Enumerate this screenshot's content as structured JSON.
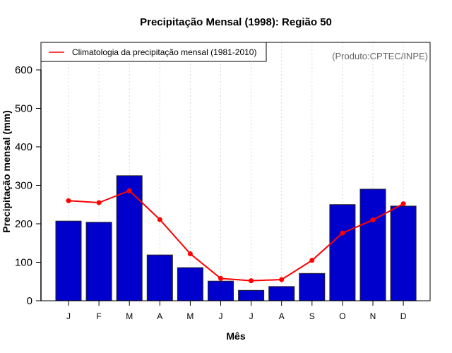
{
  "chart_data": {
    "type": "bar",
    "title": "Precipitação Mensal (1998): Região 50",
    "xlabel": "Mês",
    "ylabel": "Precipitação mensal (mm)",
    "ylim": [
      0,
      660
    ],
    "yticks": [
      0,
      100,
      200,
      300,
      400,
      500,
      600
    ],
    "grid": "vertical dotted at each month",
    "categories": [
      "J",
      "F",
      "M",
      "A",
      "M",
      "J",
      "J",
      "A",
      "S",
      "O",
      "N",
      "D"
    ],
    "series": [
      {
        "name": "Precipitação mensal 1998",
        "type": "bar",
        "color": "#0000CC",
        "values": [
          207,
          204,
          325,
          119,
          86,
          51,
          27,
          37,
          71,
          250,
          290,
          246
        ]
      },
      {
        "name": "Climatologia da precipitação mensal (1981-2010)",
        "type": "line",
        "color": "#FF0000",
        "values": [
          260,
          255,
          286,
          211,
          122,
          58,
          52,
          55,
          105,
          176,
          210,
          252
        ]
      }
    ],
    "legend": {
      "placement": "top-left",
      "entries": [
        "Climatologia da precipitação mensal (1981-2010)"
      ]
    },
    "annotation": "(Produto:CPTEC/INPE)"
  }
}
